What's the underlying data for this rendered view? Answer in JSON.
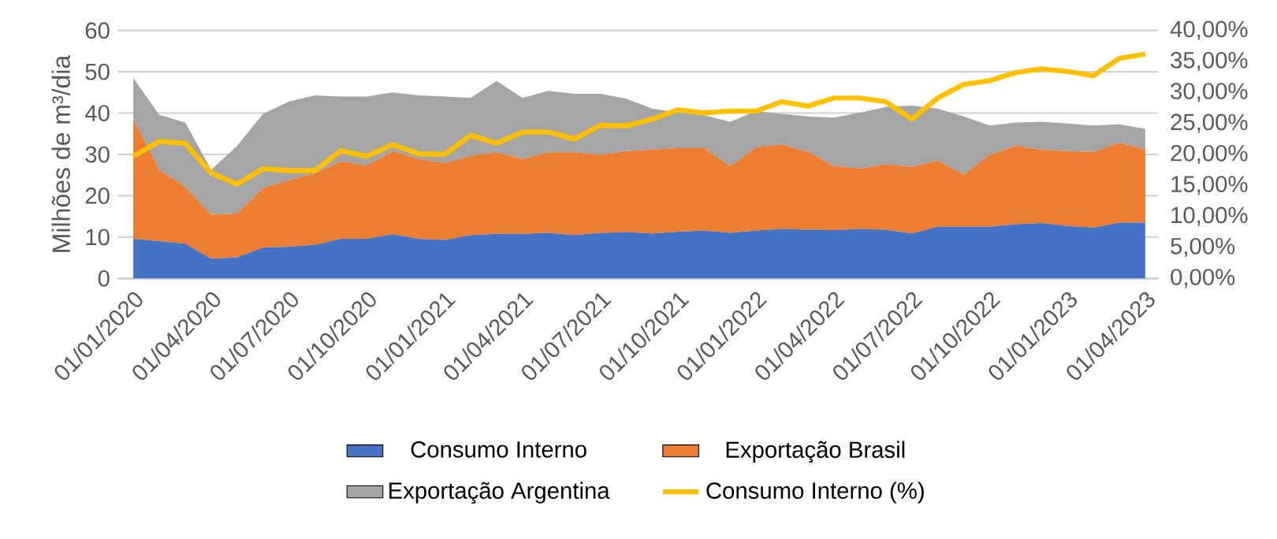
{
  "chart_data": {
    "type": "area",
    "stacked": true,
    "ylabel": "Milhões de m³/dia",
    "categories": [
      "01/01/2020",
      null,
      null,
      "01/04/2020",
      null,
      null,
      "01/07/2020",
      null,
      null,
      "01/10/2020",
      null,
      null,
      "01/01/2021",
      null,
      null,
      "01/04/2021",
      null,
      null,
      "01/07/2021",
      null,
      null,
      "01/10/2021",
      null,
      null,
      "01/01/2022",
      null,
      null,
      "01/04/2022",
      null,
      null,
      "01/07/2022",
      null,
      null,
      "01/10/2022",
      null,
      null,
      "01/01/2023",
      null,
      null,
      "01/04/2023"
    ],
    "series": [
      {
        "name": "Consumo Interno",
        "color": "#4472c4",
        "values": [
          9.6,
          9,
          8.4,
          4.8,
          5.1,
          7.5,
          7.7,
          8.1,
          9.6,
          9.6,
          10.7,
          9.6,
          9.3,
          10.5,
          10.8,
          10.8,
          11,
          10.5,
          11,
          11.2,
          10.9,
          11.3,
          11.6,
          11,
          11.6,
          12,
          11.8,
          11.7,
          12,
          11.8,
          10.9,
          12.5,
          12.5,
          12.5,
          13.1,
          13.4,
          12.7,
          12.3,
          13.5,
          13.5
        ]
      },
      {
        "name": "Exportação Brasil",
        "color": "#ed7d31",
        "values": [
          29.0,
          17.3,
          13.8,
          10.6,
          10.6,
          14.4,
          16.1,
          17.3,
          18.7,
          17.8,
          20.1,
          19.3,
          18.6,
          19.1,
          19.7,
          18.1,
          19.5,
          20.0,
          18.9,
          19.6,
          20.3,
          20.2,
          19.9,
          16.2,
          20.1,
          20.4,
          18.8,
          15.5,
          14.6,
          15.8,
          16.1,
          16.0,
          12.6,
          17.4,
          19.0,
          17.7,
          18.1,
          18.3,
          19.3,
          17.7
        ]
      },
      {
        "name": "Exportação Argentina",
        "color": "#a5a5a5",
        "values": [
          9.9,
          13.3,
          15.5,
          10.9,
          16.4,
          17.9,
          19.0,
          18.9,
          15.7,
          16.6,
          14.2,
          15.4,
          16.1,
          14.1,
          17.3,
          14.8,
          14.9,
          14.2,
          14.8,
          12.7,
          9.9,
          8.6,
          8.0,
          10.7,
          8.8,
          7.4,
          8.6,
          11.7,
          13.5,
          13.9,
          14.8,
          12.6,
          14.1,
          7.1,
          5.6,
          6.8,
          6.7,
          6.4,
          4.5,
          5.0
        ]
      },
      {
        "name": "Consumo Interno (%)",
        "color": "#ffc000",
        "type": "line",
        "axis": "y2",
        "values": [
          19.7,
          22.1,
          21.8,
          17,
          15.2,
          17.7,
          17.4,
          17.4,
          20.6,
          19.7,
          21.6,
          20.1,
          20,
          23.1,
          21.8,
          23.6,
          23.6,
          22.5,
          24.7,
          24.6,
          25.7,
          27.2,
          26.7,
          27,
          27,
          28.5,
          27.8,
          29.1,
          29.1,
          28.5,
          25.7,
          29.1,
          31.3,
          31.9,
          33.2,
          33.8,
          33.4,
          32.7,
          35.5,
          36.2
        ]
      }
    ],
    "ylim": [
      0,
      60
    ],
    "yticks": [
      0,
      10,
      20,
      30,
      40,
      50,
      60
    ],
    "y2lim": [
      0,
      40
    ],
    "y2ticks": [
      {
        "value": 0,
        "label": "0,00%"
      },
      {
        "value": 5,
        "label": "5,00%"
      },
      {
        "value": 10,
        "label": "10,00%"
      },
      {
        "value": 15,
        "label": "15,00%"
      },
      {
        "value": 20,
        "label": "20,00%"
      },
      {
        "value": 25,
        "label": "25,00%"
      },
      {
        "value": 30,
        "label": "30,00%"
      },
      {
        "value": 35,
        "label": "35,00%"
      },
      {
        "value": 40,
        "label": "40,00%"
      }
    ],
    "grid": "y",
    "legend": "bottom"
  }
}
